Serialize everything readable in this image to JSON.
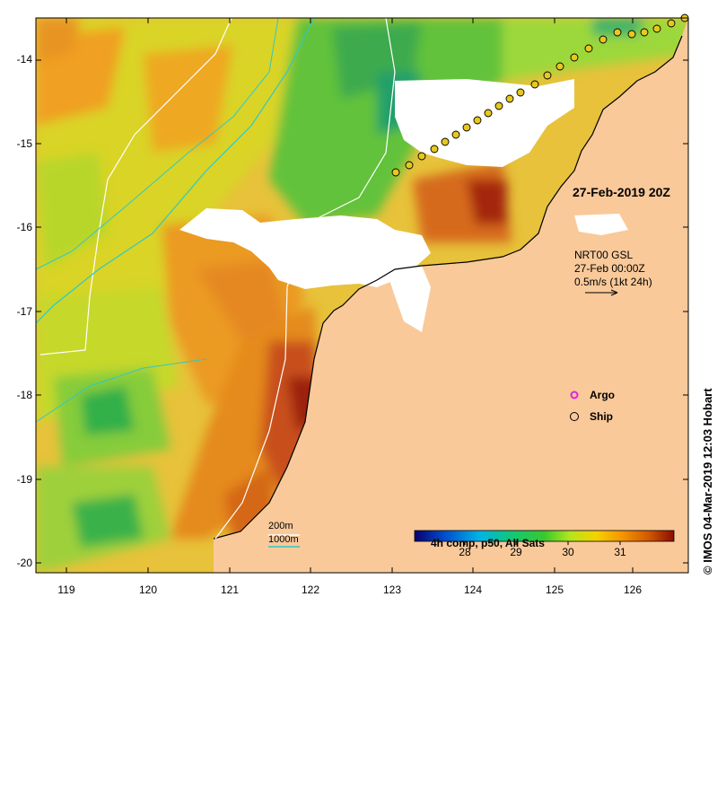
{
  "map": {
    "date_label": "27-Feb-2019 20Z",
    "current_legend": {
      "line1": "NRT00 GSL",
      "line2": "27-Feb 00:00Z",
      "line3": "0.5m/s (1kt 24h)"
    },
    "legend": {
      "argo": "Argo",
      "ship": "Ship"
    },
    "colorbar": {
      "title": "4h comp, p50, All Sats",
      "ticks": [
        "28",
        "29",
        "30",
        "31"
      ],
      "colors": [
        "#08006e",
        "#0050d0",
        "#00b4e6",
        "#10c87a",
        "#38c830",
        "#b4e61c",
        "#f5d200",
        "#f59600",
        "#d25a00",
        "#8c0c00"
      ]
    },
    "depth_legend": {
      "d200": "200m",
      "d1000": "1000m"
    },
    "credit": "IMOS 04-Mar-2019 12:03 Hobart",
    "credit_symbol": "©",
    "y_ticks": [
      "-14",
      "-15",
      "-16",
      "-17",
      "-18",
      "-19",
      "-20"
    ],
    "x_ticks": [
      "119",
      "120",
      "121",
      "122",
      "123",
      "124",
      "125",
      "126"
    ],
    "colors": {
      "land": "#f9c99a",
      "cloud": "#ffffff",
      "isobath_200": "#ffffff",
      "isobath_1000": "#30c8c8",
      "argo": "#e020e0"
    }
  }
}
